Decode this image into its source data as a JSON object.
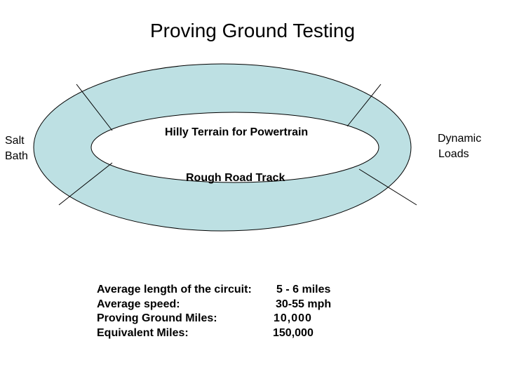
{
  "title": "Proving Ground Testing",
  "colors": {
    "track_fill": "#bde0e3",
    "outline": "#000000",
    "background": "#ffffff"
  },
  "labels": {
    "inner_top": "Hilly Terrain for Powertrain",
    "inner_bottom": "Rough  Road Track",
    "left_line1": "Salt",
    "left_line2": "Bath",
    "right_line1": "Dynamic",
    "right_line2": "Loads"
  },
  "stats": [
    {
      "label": "Average length of the circuit:",
      "value": "5 - 6 miles"
    },
    {
      "label": "Average speed:",
      "value": "30-55 mph"
    },
    {
      "label": "Proving Ground Miles:",
      "value": "10,000"
    },
    {
      "label": "Equivalent Miles:",
      "value": "150,000"
    }
  ]
}
